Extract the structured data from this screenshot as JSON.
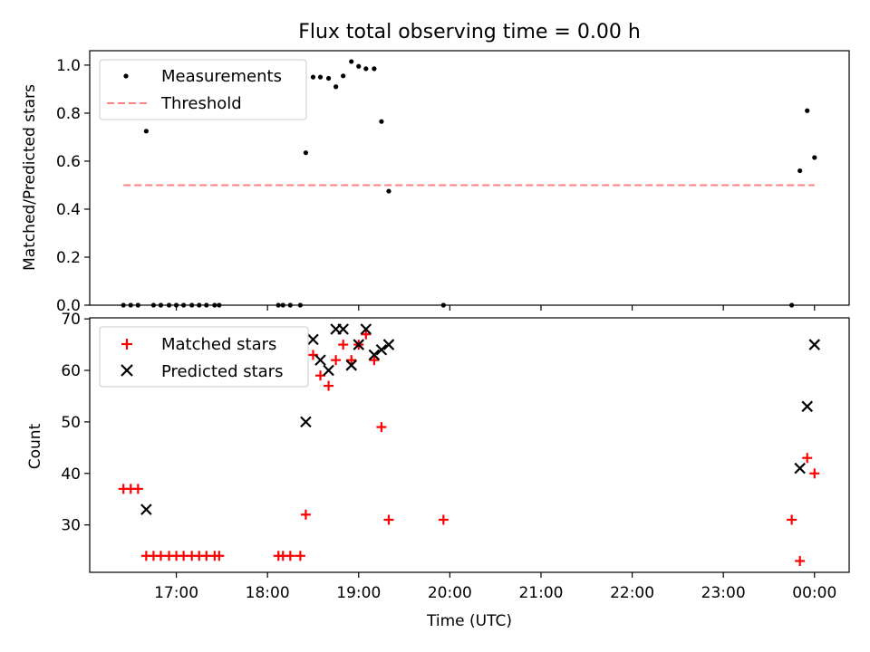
{
  "chart_data": [
    {
      "type": "scatter",
      "title": "Flux total observing time = 0.00 h",
      "xlabel": "",
      "ylabel": "Matched/Predicted stars",
      "xlim": [
        16.05,
        24.38
      ],
      "ylim": [
        0.0,
        1.06
      ],
      "yticks": [
        0.0,
        0.2,
        0.4,
        0.6,
        0.8,
        1.0
      ],
      "ytick_labels": [
        "0.0",
        "0.2",
        "0.4",
        "0.6",
        "0.8",
        "1.0"
      ],
      "legend": {
        "position": "upper-left",
        "entries": [
          "Measurements",
          "Threshold"
        ]
      },
      "series": [
        {
          "name": "Measurements",
          "kind": "scatter",
          "color": "#000000",
          "points": [
            [
              16.42,
              0.0
            ],
            [
              16.5,
              0.0
            ],
            [
              16.58,
              0.0
            ],
            [
              16.67,
              0.725
            ],
            [
              16.75,
              0.0
            ],
            [
              16.83,
              0.0
            ],
            [
              16.92,
              0.0
            ],
            [
              17.0,
              0.0
            ],
            [
              17.08,
              0.0
            ],
            [
              17.17,
              0.0
            ],
            [
              17.25,
              0.0
            ],
            [
              17.33,
              0.0
            ],
            [
              17.42,
              0.0
            ],
            [
              17.47,
              0.0
            ],
            [
              18.12,
              0.0
            ],
            [
              18.17,
              0.0
            ],
            [
              18.25,
              0.0
            ],
            [
              18.36,
              0.0
            ],
            [
              18.42,
              0.635
            ],
            [
              18.5,
              0.95
            ],
            [
              18.58,
              0.95
            ],
            [
              18.67,
              0.945
            ],
            [
              18.75,
              0.91
            ],
            [
              18.83,
              0.955
            ],
            [
              18.92,
              1.015
            ],
            [
              19.0,
              0.995
            ],
            [
              19.08,
              0.985
            ],
            [
              19.17,
              0.985
            ],
            [
              19.25,
              0.765
            ],
            [
              19.33,
              0.475
            ],
            [
              19.93,
              0.0
            ],
            [
              23.75,
              0.0
            ],
            [
              23.84,
              0.56
            ],
            [
              23.92,
              0.81
            ],
            [
              24.0,
              0.615
            ]
          ]
        },
        {
          "name": "Threshold",
          "kind": "line",
          "color": "#ff7f7f",
          "dashed": true,
          "x": [
            16.42,
            24.0
          ],
          "y": [
            0.5,
            0.5
          ]
        }
      ]
    },
    {
      "type": "scatter",
      "title": "",
      "xlabel": "Time (UTC)",
      "ylabel": "Count",
      "xlim": [
        16.05,
        24.38
      ],
      "ylim": [
        20.8,
        70.2
      ],
      "xticks": [
        17,
        18,
        19,
        20,
        21,
        22,
        23,
        24
      ],
      "xtick_labels": [
        "17:00",
        "18:00",
        "19:00",
        "20:00",
        "21:00",
        "22:00",
        "23:00",
        "00:00"
      ],
      "yticks": [
        30,
        40,
        50,
        60,
        70
      ],
      "ytick_labels": [
        "30",
        "40",
        "50",
        "60",
        "70"
      ],
      "legend": {
        "position": "upper-left",
        "entries": [
          "Matched stars",
          "Predicted stars"
        ]
      },
      "series": [
        {
          "name": "Matched stars",
          "kind": "scatter",
          "marker": "plus",
          "color": "#ff0000",
          "points": [
            [
              16.42,
              37
            ],
            [
              16.5,
              37
            ],
            [
              16.58,
              37
            ],
            [
              16.67,
              24
            ],
            [
              16.75,
              24
            ],
            [
              16.83,
              24
            ],
            [
              16.92,
              24
            ],
            [
              17.0,
              24
            ],
            [
              17.08,
              24
            ],
            [
              17.17,
              24
            ],
            [
              17.25,
              24
            ],
            [
              17.33,
              24
            ],
            [
              17.42,
              24
            ],
            [
              17.47,
              24
            ],
            [
              18.12,
              24
            ],
            [
              18.17,
              24
            ],
            [
              18.25,
              24
            ],
            [
              18.36,
              24
            ],
            [
              18.42,
              32
            ],
            [
              18.5,
              63
            ],
            [
              18.58,
              59
            ],
            [
              18.67,
              57
            ],
            [
              18.75,
              62
            ],
            [
              18.83,
              65
            ],
            [
              18.92,
              62
            ],
            [
              19.0,
              65
            ],
            [
              19.08,
              67
            ],
            [
              19.17,
              62
            ],
            [
              19.25,
              49
            ],
            [
              19.33,
              31
            ],
            [
              19.93,
              31
            ],
            [
              23.75,
              31
            ],
            [
              23.84,
              23
            ],
            [
              23.92,
              43
            ],
            [
              24.0,
              40
            ]
          ]
        },
        {
          "name": "Predicted stars",
          "kind": "scatter",
          "marker": "x",
          "color": "#000000",
          "points": [
            [
              16.67,
              33
            ],
            [
              18.42,
              50
            ],
            [
              18.5,
              66
            ],
            [
              18.58,
              62
            ],
            [
              18.67,
              60
            ],
            [
              18.75,
              68
            ],
            [
              18.83,
              68
            ],
            [
              18.92,
              61
            ],
            [
              19.0,
              65
            ],
            [
              19.08,
              68
            ],
            [
              19.17,
              63
            ],
            [
              19.25,
              64
            ],
            [
              19.33,
              65
            ],
            [
              23.84,
              41
            ],
            [
              23.92,
              53
            ],
            [
              24.0,
              65
            ]
          ]
        }
      ]
    }
  ]
}
